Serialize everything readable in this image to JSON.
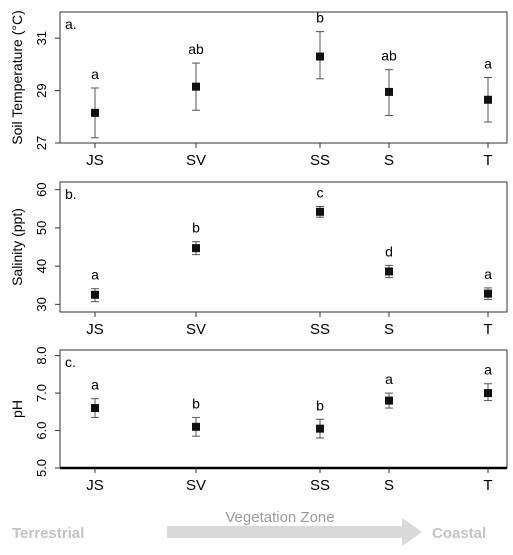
{
  "chart_data": [
    {
      "type": "scatter",
      "panel_label": "a.",
      "ylabel": "Soil Temperature (°C)",
      "categories": [
        "JS",
        "SV",
        "SS",
        "S",
        "T"
      ],
      "yticks": [
        27,
        29,
        31
      ],
      "ylim": [
        27,
        32
      ],
      "values": [
        28.15,
        29.15,
        30.3,
        28.95,
        28.65
      ],
      "err_low": [
        27.2,
        28.25,
        29.45,
        28.05,
        27.8
      ],
      "err_high": [
        29.1,
        30.05,
        31.25,
        29.8,
        29.5
      ],
      "letters": [
        "a",
        "ab",
        "b",
        "ab",
        "a"
      ],
      "grid": false
    },
    {
      "type": "scatter",
      "panel_label": "b.",
      "ylabel": "Salinity (ppt)",
      "categories": [
        "JS",
        "SV",
        "SS",
        "S",
        "T"
      ],
      "yticks": [
        30,
        40,
        50,
        60
      ],
      "ylim": [
        28,
        62
      ],
      "values": [
        32.5,
        44.7,
        54.2,
        38.6,
        32.8
      ],
      "err_low": [
        30.7,
        43.0,
        52.8,
        37.0,
        31.3
      ],
      "err_high": [
        34.1,
        46.4,
        55.6,
        40.2,
        34.3
      ],
      "letters": [
        "a",
        "b",
        "c",
        "d",
        "a"
      ],
      "grid": false
    },
    {
      "type": "scatter",
      "panel_label": "c.",
      "ylabel": "pH",
      "categories": [
        "JS",
        "SV",
        "SS",
        "S",
        "T"
      ],
      "yticks": [
        "5.0",
        "6.0",
        "7.0",
        "8.0"
      ],
      "ylim": [
        5.0,
        8.15
      ],
      "values": [
        6.6,
        6.1,
        6.05,
        6.8,
        7.0
      ],
      "err_low": [
        6.35,
        5.85,
        5.8,
        6.6,
        6.8
      ],
      "err_high": [
        6.85,
        6.35,
        6.3,
        7.0,
        7.25
      ],
      "letters": [
        "a",
        "b",
        "b",
        "a",
        "a"
      ],
      "grid": false
    }
  ],
  "xaxis": {
    "label": "Vegetation Zone",
    "left_label": "Terrestrial",
    "right_label": "Coastal"
  },
  "colors": {
    "marker": "#111111",
    "axis": "#333333",
    "bottom_labels": "#c4c4c4",
    "arrow": "#d9d9d9"
  }
}
